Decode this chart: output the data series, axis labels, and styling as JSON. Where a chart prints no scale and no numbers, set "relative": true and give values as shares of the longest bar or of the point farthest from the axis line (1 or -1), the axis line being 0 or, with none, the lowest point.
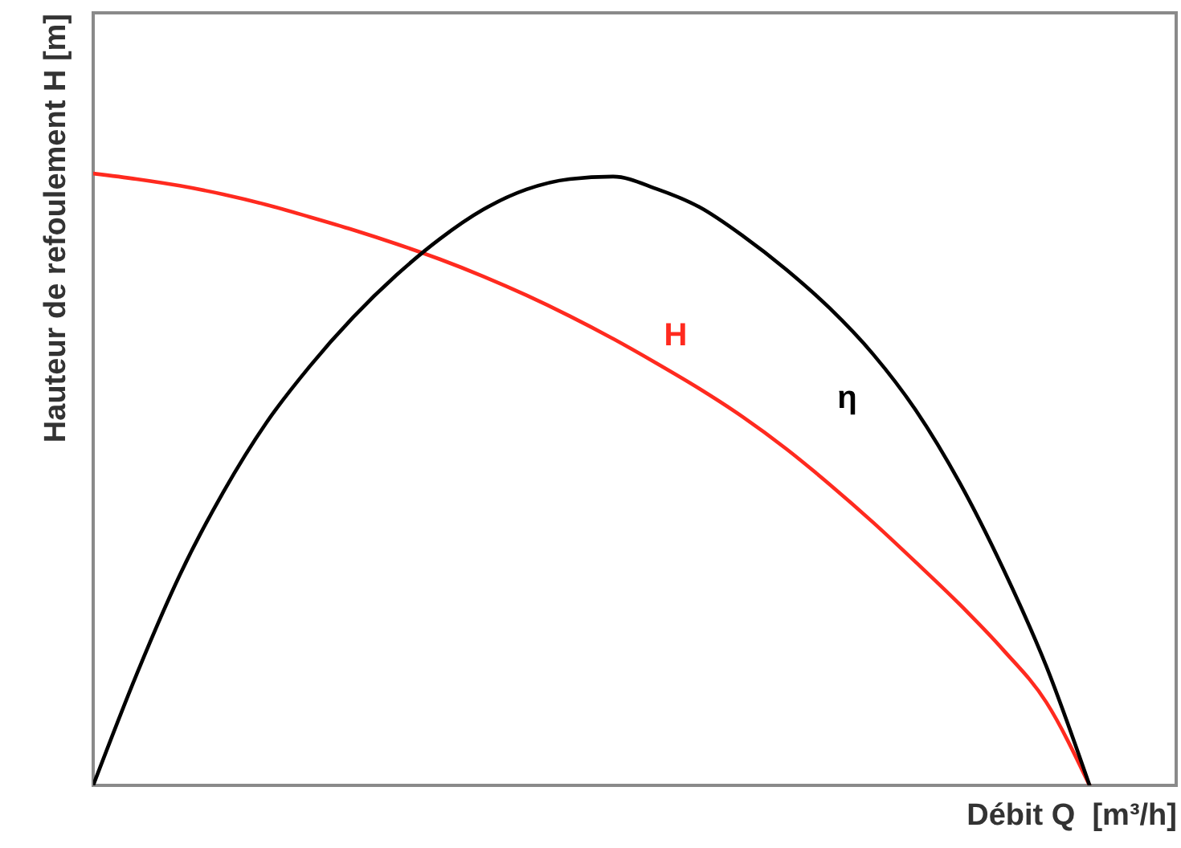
{
  "chart_data": {
    "type": "line",
    "relative": true,
    "xlabel": "Débit Q  [m³/h]",
    "ylabel": "Hauteur de refoulement H [m]",
    "categories": [
      null,
      null,
      null,
      null,
      null,
      null,
      null,
      null,
      null,
      null,
      null,
      null,
      null,
      null,
      null,
      null,
      null,
      null,
      null,
      null,
      null,
      null,
      null,
      null,
      null,
      null
    ],
    "series": [
      {
        "name": "H",
        "color": "#ff2a1f",
        "values": [
          1.0,
          0.991,
          0.98,
          0.966,
          0.949,
          0.929,
          0.908,
          0.885,
          0.86,
          0.832,
          0.801,
          0.767,
          0.73,
          0.69,
          0.648,
          0.602,
          0.55,
          0.492,
          0.43,
          0.364,
          0.296,
          0.222,
          0.136,
          0,
          null,
          null
        ]
      },
      {
        "name": "η",
        "color": "#000000",
        "values": [
          0,
          0.181,
          0.344,
          0.479,
          0.593,
          0.685,
          0.765,
          0.834,
          0.893,
          0.941,
          0.974,
          0.991,
          0.995,
          0.975,
          0.945,
          0.898,
          0.843,
          0.78,
          0.705,
          0.612,
          0.495,
          0.355,
          0.195,
          0,
          null,
          null
        ]
      }
    ]
  }
}
